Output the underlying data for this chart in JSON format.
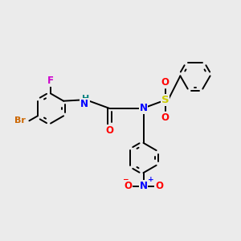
{
  "bg_color": "#ebebeb",
  "bond_color": "#000000",
  "atom_colors": {
    "F": "#cc00cc",
    "Br": "#cc6600",
    "N": "#0000ff",
    "O": "#ff0000",
    "S": "#cccc00",
    "H": "#008080",
    "C": "#000000"
  },
  "lw": 1.4,
  "fs": 8.5
}
